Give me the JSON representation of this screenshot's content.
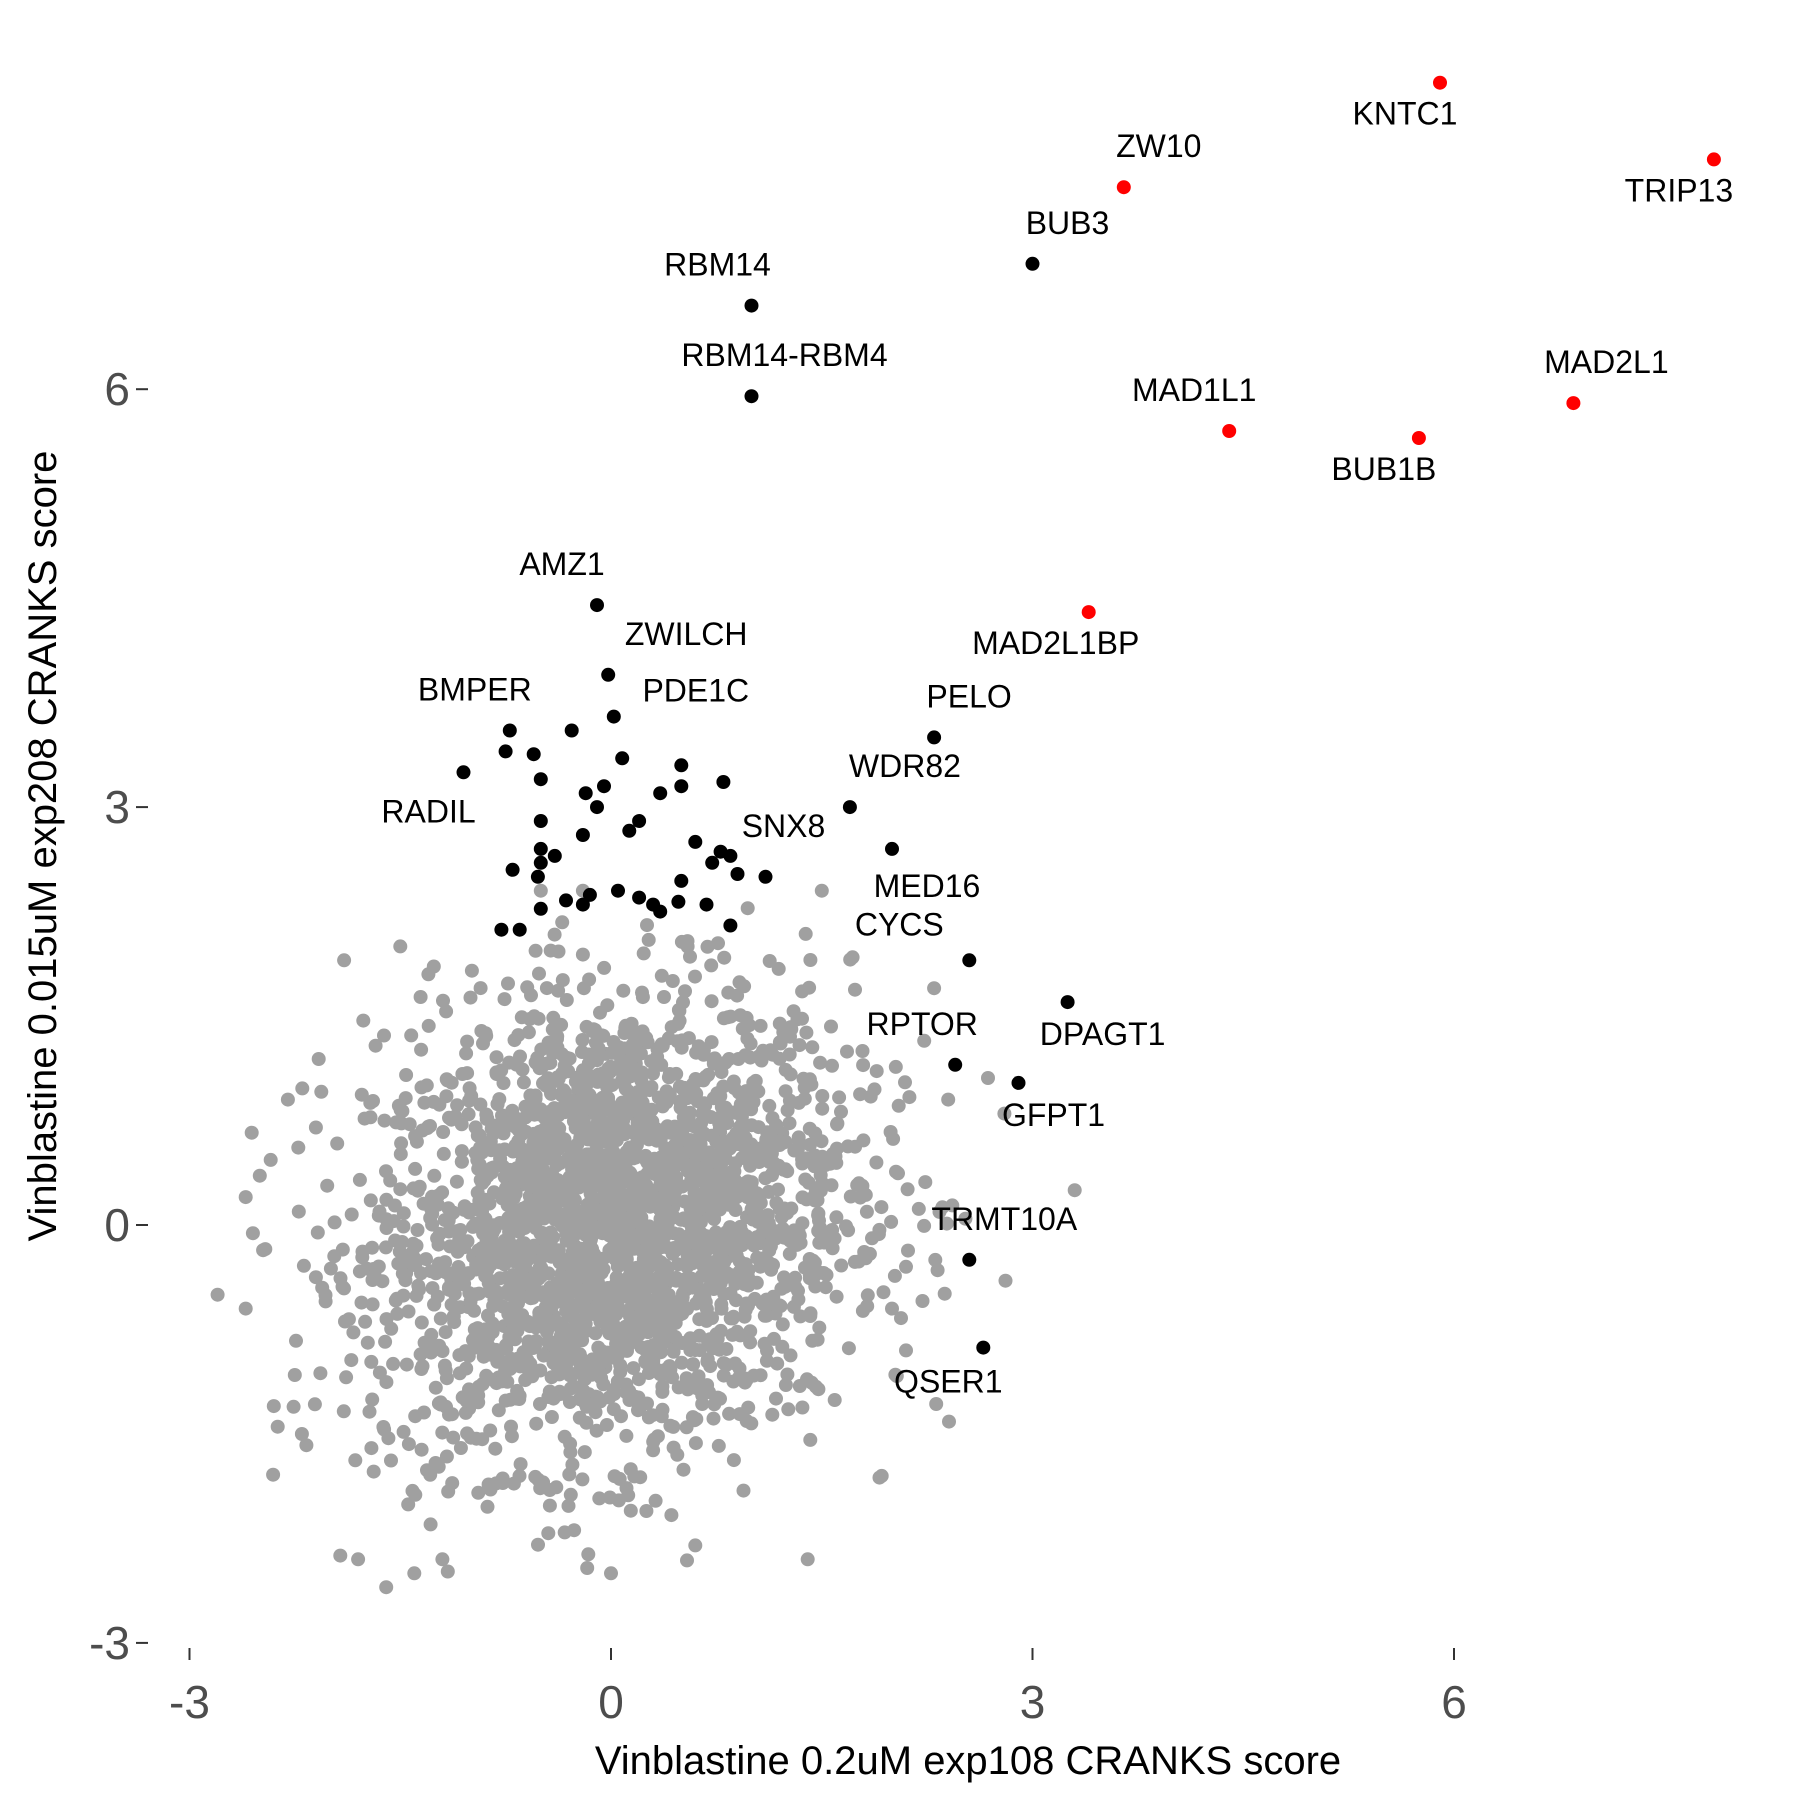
{
  "chart_data": {
    "type": "scatter",
    "title": "",
    "xlabel": "Vinblastine 0.2uM exp108 CRANKS score",
    "ylabel": "Vinblastine 0.015uM exp208 CRANKS score",
    "xlim": [
      -3.3,
      8.6
    ],
    "ylim": [
      -3.1,
      8.8
    ],
    "xticks": [
      -3,
      0,
      3,
      6
    ],
    "yticks": [
      -3,
      0,
      3,
      6
    ],
    "xtick_labels": [
      "-3",
      "0",
      "3",
      "6"
    ],
    "ytick_labels": [
      "-3",
      "0",
      "3",
      "6"
    ],
    "grid": false,
    "legend": "none",
    "colors": {
      "background": "#a0a0a0",
      "hit": "#000000",
      "highlight": "#ff0000",
      "tick_text": "#4d4d4d"
    },
    "background_cloud": {
      "color": "#a0a0a0",
      "center": [
        0,
        0
      ],
      "approx_range_x": [
        -2.8,
        3.4
      ],
      "approx_range_y": [
        -2.6,
        2.5
      ],
      "outliers": [
        [
          -2.8,
          -0.5
        ],
        [
          -2.6,
          -0.6
        ],
        [
          -2.6,
          0.2
        ],
        [
          -2.4,
          -1.3
        ],
        [
          -2.2,
          -1.5
        ],
        [
          -2.3,
          0.9
        ],
        [
          -2.1,
          0.7
        ],
        [
          -1.8,
          -2.4
        ],
        [
          -1.6,
          -2.6
        ],
        [
          -1.4,
          -2.5
        ],
        [
          -1.2,
          -2.4
        ],
        [
          -1.9,
          1.9
        ],
        [
          -1.5,
          2.0
        ],
        [
          -1.3,
          1.8
        ],
        [
          3.3,
          0.25
        ],
        [
          2.8,
          0.8
        ],
        [
          2.4,
          0.9
        ],
        [
          2.1,
          -0.3
        ],
        [
          2.0,
          -0.6
        ],
        [
          2.1,
          -0.9
        ],
        [
          1.4,
          -2.4
        ],
        [
          0.0,
          -2.5
        ],
        [
          0.6,
          -2.3
        ],
        [
          -0.5,
          2.4
        ],
        [
          -0.2,
          2.4
        ],
        [
          1.5,
          2.4
        ],
        [
          2.3,
          1.7
        ]
      ]
    },
    "series": [
      {
        "color": "#ff0000",
        "points": [
          {
            "x": 5.9,
            "y": 8.2,
            "label": "KNTC1"
          },
          {
            "x": 3.65,
            "y": 7.45,
            "label": "ZW10"
          },
          {
            "x": 7.85,
            "y": 7.65,
            "label": "TRIP13"
          },
          {
            "x": 6.85,
            "y": 5.9,
            "label": "MAD2L1"
          },
          {
            "x": 4.4,
            "y": 5.7,
            "label": "MAD1L1"
          },
          {
            "x": 5.75,
            "y": 5.65,
            "label": "BUB1B"
          },
          {
            "x": 3.4,
            "y": 4.4,
            "label": "MAD2L1BP"
          }
        ]
      },
      {
        "color": "#000000",
        "points": [
          {
            "x": 3.0,
            "y": 6.9,
            "label": "BUB3"
          },
          {
            "x": 1.0,
            "y": 6.6,
            "label": "RBM14"
          },
          {
            "x": 1.0,
            "y": 5.95,
            "label": "RBM14-RBM4"
          },
          {
            "x": -0.1,
            "y": 4.45,
            "label": "AMZ1"
          },
          {
            "x": -0.02,
            "y": 3.95,
            "label": "ZWILCH"
          },
          {
            "x": -0.72,
            "y": 3.55,
            "label": "BMPER"
          },
          {
            "x": 0.02,
            "y": 3.65,
            "label": "PDE1C"
          },
          {
            "x": -1.05,
            "y": 3.25,
            "label": "RADIL"
          },
          {
            "x": 2.3,
            "y": 3.5,
            "label": "PELO"
          },
          {
            "x": 1.7,
            "y": 3.0,
            "label": "WDR82"
          },
          {
            "x": 2.0,
            "y": 2.7,
            "label": "MED16"
          },
          {
            "x": 2.55,
            "y": 1.9,
            "label": "CYCS"
          },
          {
            "x": 3.25,
            "y": 1.6,
            "label": "DPAGT1"
          },
          {
            "x": 2.45,
            "y": 1.15,
            "label": "RPTOR"
          },
          {
            "x": 2.9,
            "y": 1.02,
            "label": "GFPT1"
          },
          {
            "x": 2.55,
            "y": -0.25,
            "label": "TRMT10A"
          },
          {
            "x": 2.65,
            "y": -0.88,
            "label": "QSER1"
          },
          {
            "x": 1.1,
            "y": 2.5,
            "label": "SNX8"
          },
          {
            "x": -0.75,
            "y": 3.4,
            "label": ""
          },
          {
            "x": -0.55,
            "y": 3.38,
            "label": ""
          },
          {
            "x": -0.28,
            "y": 3.55,
            "label": ""
          },
          {
            "x": -0.5,
            "y": 3.2,
            "label": ""
          },
          {
            "x": 0.08,
            "y": 3.35,
            "label": ""
          },
          {
            "x": -0.18,
            "y": 3.1,
            "label": ""
          },
          {
            "x": -0.05,
            "y": 3.15,
            "label": ""
          },
          {
            "x": 0.5,
            "y": 3.3,
            "label": ""
          },
          {
            "x": 0.5,
            "y": 3.15,
            "label": ""
          },
          {
            "x": 0.8,
            "y": 3.18,
            "label": ""
          },
          {
            "x": 0.35,
            "y": 3.1,
            "label": ""
          },
          {
            "x": -0.1,
            "y": 3.0,
            "label": ""
          },
          {
            "x": -0.5,
            "y": 2.9,
            "label": ""
          },
          {
            "x": 0.2,
            "y": 2.9,
            "label": ""
          },
          {
            "x": 0.13,
            "y": 2.83,
            "label": ""
          },
          {
            "x": -0.2,
            "y": 2.8,
            "label": ""
          },
          {
            "x": -0.5,
            "y": 2.7,
            "label": ""
          },
          {
            "x": -0.4,
            "y": 2.65,
            "label": ""
          },
          {
            "x": -0.5,
            "y": 2.6,
            "label": ""
          },
          {
            "x": 0.6,
            "y": 2.75,
            "label": ""
          },
          {
            "x": 0.78,
            "y": 2.68,
            "label": ""
          },
          {
            "x": 0.85,
            "y": 2.65,
            "label": ""
          },
          {
            "x": 0.72,
            "y": 2.6,
            "label": ""
          },
          {
            "x": 0.9,
            "y": 2.52,
            "label": ""
          },
          {
            "x": -0.7,
            "y": 2.55,
            "label": ""
          },
          {
            "x": -0.52,
            "y": 2.5,
            "label": ""
          },
          {
            "x": 0.5,
            "y": 2.47,
            "label": ""
          },
          {
            "x": 0.05,
            "y": 2.4,
            "label": ""
          },
          {
            "x": -0.15,
            "y": 2.37,
            "label": ""
          },
          {
            "x": 0.2,
            "y": 2.35,
            "label": ""
          },
          {
            "x": -0.32,
            "y": 2.33,
            "label": ""
          },
          {
            "x": 0.3,
            "y": 2.3,
            "label": ""
          },
          {
            "x": 0.48,
            "y": 2.32,
            "label": ""
          },
          {
            "x": 0.68,
            "y": 2.3,
            "label": ""
          },
          {
            "x": -0.5,
            "y": 2.27,
            "label": ""
          },
          {
            "x": 0.35,
            "y": 2.25,
            "label": ""
          },
          {
            "x": -0.2,
            "y": 2.3,
            "label": ""
          },
          {
            "x": 0.85,
            "y": 2.15,
            "label": ""
          },
          {
            "x": -0.78,
            "y": 2.12,
            "label": ""
          },
          {
            "x": -0.65,
            "y": 2.12,
            "label": ""
          }
        ]
      }
    ]
  }
}
